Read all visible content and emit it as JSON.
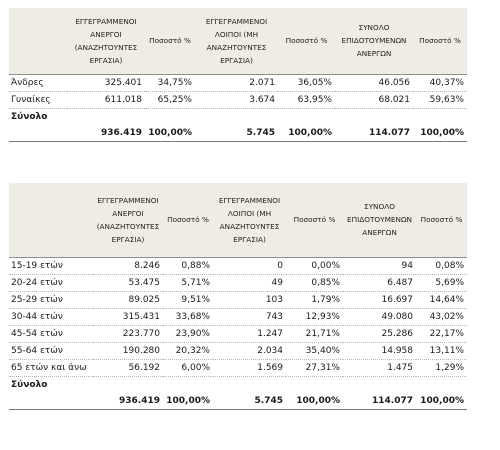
{
  "headers": [
    "ΕΓΓΕΓΡΑΜΜΕΝΟΙ ΑΝΕΡΓΟΙ (ΑΝΑΖΗΤΟΥΝΤΕΣ ΕΡΓΑΣΙΑ)",
    "Ποσοστό %",
    "ΕΓΓΕΓΡΑΜΜΕΝΟΙ ΛΟΙΠΟΙ (ΜΗ ΑΝΑΖΗΤΟΥΝΤΕΣ ΕΡΓΑΣΙΑ)",
    "Ποσοστό %",
    "ΣΥΝΟΛΟ ΕΠΙΔΟΤΟΥΜΕΝΩΝ ΑΝΕΡΓΩΝ",
    "Ποσοστό %"
  ],
  "table1": {
    "rows": [
      {
        "label": "Άνδρες",
        "values": [
          "325.401",
          "34,75%",
          "2.071",
          "36,05%",
          "46.056",
          "40,37%"
        ]
      },
      {
        "label": "Γυναίκες",
        "values": [
          "611.018",
          "65,25%",
          "3.674",
          "63,95%",
          "68.021",
          "59,63%"
        ]
      }
    ],
    "total_label": "Σύνολο",
    "total_values": [
      "936.419",
      "100,00%",
      "5.745",
      "100,00%",
      "114.077",
      "100,00%"
    ]
  },
  "table2": {
    "rows": [
      {
        "label": "15-19 ετών",
        "values": [
          "8.246",
          "0,88%",
          "0",
          "0,00%",
          "94",
          "0,08%"
        ]
      },
      {
        "label": "20-24 ετών",
        "values": [
          "53.475",
          "5,71%",
          "49",
          "0,85%",
          "6.487",
          "5,69%"
        ]
      },
      {
        "label": "25-29 ετών",
        "values": [
          "89.025",
          "9,51%",
          "103",
          "1,79%",
          "16.697",
          "14,64%"
        ]
      },
      {
        "label": "30-44 ετών",
        "values": [
          "315.431",
          "33,68%",
          "743",
          "12,93%",
          "49.080",
          "43,02%"
        ]
      },
      {
        "label": "45-54 ετών",
        "values": [
          "223.770",
          "23,90%",
          "1.247",
          "21,71%",
          "25.286",
          "22,17%"
        ]
      },
      {
        "label": "55-64 ετών",
        "values": [
          "190.280",
          "20,32%",
          "2.034",
          "35,40%",
          "14.958",
          "13,11%"
        ]
      },
      {
        "label": "65 ετών και άνω",
        "values": [
          "56.192",
          "6,00%",
          "1.569",
          "27,31%",
          "1.475",
          "1,29%"
        ]
      }
    ],
    "total_label": "Σύνολο",
    "total_values": [
      "936.419",
      "100,00%",
      "5.745",
      "100,00%",
      "114.077",
      "100,00%"
    ]
  },
  "colors": {
    "header_bg": "#eeece3",
    "row_rule": "#b7b7b7"
  }
}
